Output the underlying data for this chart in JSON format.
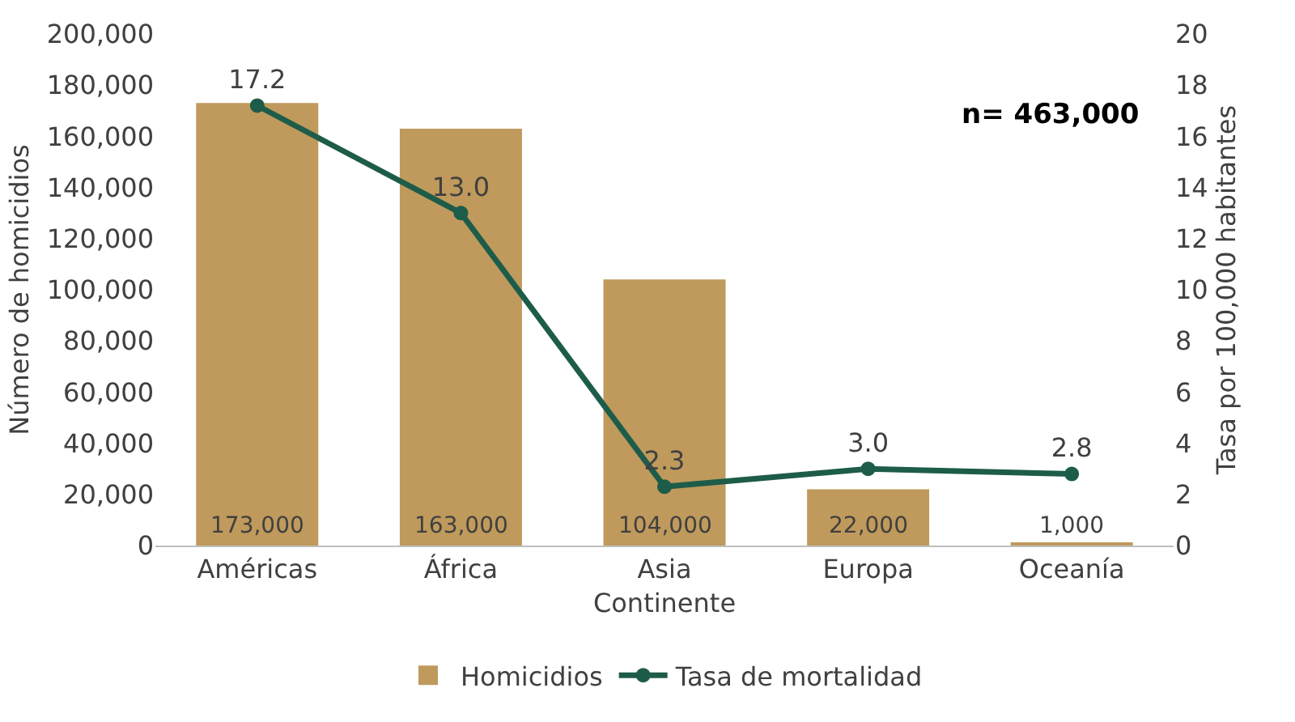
{
  "chart_data": {
    "type": "bar",
    "xlabel": "Continente",
    "ylabel": "Número de homicidios",
    "y2label": "Tasa por 100,000 habitantes",
    "categories": [
      "Américas",
      "África",
      "Asia",
      "Europa",
      "Oceanía"
    ],
    "series": [
      {
        "name": "Homicidios",
        "color": "#bf9a5c",
        "values": [
          173000,
          163000,
          104000,
          22000,
          1000
        ],
        "value_labels": [
          "173,000",
          "163,000",
          "104,000",
          "22,000",
          "1,000"
        ]
      },
      {
        "name": "Tasa de mortalidad",
        "type": "line",
        "axis": "y2",
        "color": "#1e5c4a",
        "marker": "circle",
        "values": [
          17.2,
          13.0,
          2.3,
          3.0,
          2.8
        ],
        "value_labels": [
          "17.2",
          "13.0",
          "2.3",
          "3.0",
          "2.8"
        ]
      }
    ],
    "ylim": [
      0,
      200000
    ],
    "yticks": [
      0,
      {
        "value": 20000,
        "label": "20,000"
      },
      {
        "value": 40000,
        "label": "40,000"
      },
      {
        "value": 60000,
        "label": "60,000"
      },
      {
        "value": 80000,
        "label": "80,000"
      },
      {
        "value": 100000,
        "label": "100,000"
      },
      {
        "value": 120000,
        "label": "120,000"
      },
      {
        "value": 140000,
        "label": "140,000"
      },
      {
        "value": 160000,
        "label": "160,000"
      },
      {
        "value": 180000,
        "label": "180,000"
      },
      {
        "value": 200000,
        "label": "200,000"
      }
    ],
    "y2lim": [
      0,
      20
    ],
    "y2ticks": [
      0,
      2,
      4,
      6,
      8,
      10,
      12,
      14,
      16,
      18,
      20
    ],
    "annotations": [
      "n= 463,000"
    ],
    "grid": false,
    "legend": "bottom"
  }
}
